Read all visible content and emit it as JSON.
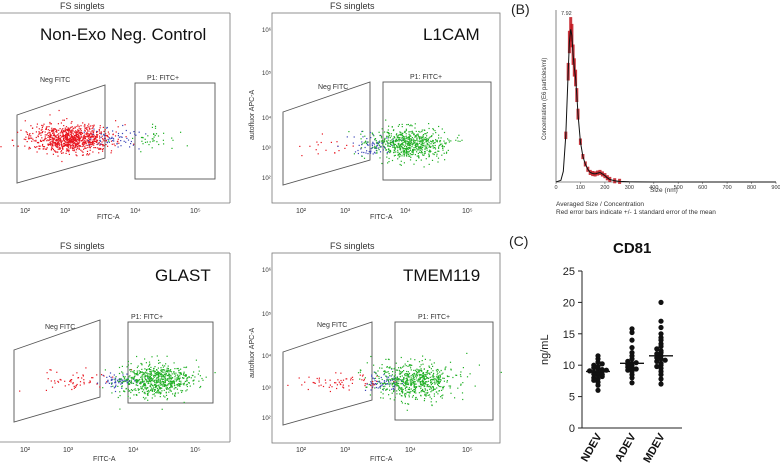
{
  "flow_panels": [
    {
      "top_title": "FS singlets",
      "sample_label": "Non-Exo Neg. Control",
      "gate_neg_label": "Neg FITC",
      "gate_pos_label": "P1: FITC+",
      "x_axis_label": "FITC-A",
      "y_axis_label": "",
      "x_ticks": [
        "10²",
        "10³",
        "10⁴",
        "10⁵"
      ],
      "y_ticks": []
    },
    {
      "top_title": "FS singlets",
      "sample_label": "L1CAM",
      "gate_neg_label": "Neg FITC",
      "gate_pos_label": "P1: FITC+",
      "x_axis_label": "FITC-A",
      "y_axis_label": "autofluor APC-A",
      "x_ticks": [
        "10²",
        "10³",
        "10⁴",
        "10⁵"
      ],
      "y_ticks": [
        "10⁶",
        "10⁵",
        "10⁴",
        "10³",
        "10²"
      ]
    },
    {
      "top_title": "FS singlets",
      "sample_label": "GLAST",
      "gate_neg_label": "Neg FITC",
      "gate_pos_label": "P1: FITC+",
      "x_axis_label": "FITC-A",
      "y_axis_label": "",
      "x_ticks": [
        "10²",
        "10³",
        "10⁴",
        "10⁵"
      ],
      "y_ticks": []
    },
    {
      "top_title": "FS singlets",
      "sample_label": "TMEM119",
      "gate_neg_label": "Neg FITC",
      "gate_pos_label": "P1: FITC+",
      "x_axis_label": "FITC-A",
      "y_axis_label": "autofluor APC-A",
      "x_ticks": [
        "10²",
        "10³",
        "10⁴",
        "10⁵"
      ],
      "y_ticks": [
        "10⁶",
        "10⁵",
        "10⁴",
        "10³",
        "10²"
      ]
    }
  ],
  "panel_b": {
    "letter": "(B)",
    "y_axis_label": "Concentration (E6 particles/ml)",
    "x_axis_label": "Size (nm)",
    "y_top_tick": "7.92",
    "x_ticks": [
      "0",
      "100",
      "200",
      "300",
      "400",
      "500",
      "600",
      "700",
      "800",
      "900"
    ],
    "caption_line1": "Averaged Size / Concentration",
    "caption_line2": "Red error bars indicate +/- 1 standard error of the mean"
  },
  "panel_c": {
    "letter": "(C)",
    "title": "CD81",
    "y_axis_label": "ng/mL",
    "categories": [
      "NDEV",
      "ADEV",
      "MDEV"
    ],
    "y_ticks": [
      "0",
      "5",
      "10",
      "15",
      "20",
      "25"
    ]
  },
  "chart_data": [
    {
      "type": "scatter",
      "title": "Non-Exo Neg. Control",
      "xlabel": "FITC-A",
      "x_scale": "log",
      "series": [
        {
          "name": "Neg FITC",
          "color": "#e8141e",
          "dominant": true
        },
        {
          "name": "P1: FITC+",
          "color": "#22b026"
        }
      ]
    },
    {
      "type": "scatter",
      "title": "L1CAM",
      "xlabel": "FITC-A",
      "ylabel": "autofluor APC-A",
      "x_scale": "log",
      "series": [
        {
          "name": "Neg FITC",
          "color": "#e8141e"
        },
        {
          "name": "P1: FITC+",
          "color": "#22b026",
          "dominant": true
        }
      ]
    },
    {
      "type": "scatter",
      "title": "GLAST",
      "xlabel": "FITC-A",
      "x_scale": "log",
      "series": [
        {
          "name": "Neg FITC",
          "color": "#e8141e"
        },
        {
          "name": "P1: FITC+",
          "color": "#22b026",
          "dominant": true
        }
      ]
    },
    {
      "type": "scatter",
      "title": "TMEM119",
      "xlabel": "FITC-A",
      "ylabel": "autofluor APC-A",
      "x_scale": "log",
      "series": [
        {
          "name": "Neg FITC",
          "color": "#e8141e"
        },
        {
          "name": "P1: FITC+",
          "color": "#22b026",
          "dominant": true
        }
      ]
    },
    {
      "type": "line",
      "xlabel": "Size (nm)",
      "ylabel": "Concentration (E6 particles/ml)",
      "xlim": [
        0,
        900
      ],
      "ylim": [
        0,
        7.92
      ],
      "x": [
        0,
        20,
        30,
        40,
        50,
        55,
        60,
        65,
        70,
        75,
        80,
        85,
        90,
        100,
        110,
        120,
        130,
        140,
        150,
        160,
        170,
        180,
        190,
        200,
        210,
        220,
        240,
        260,
        300,
        400,
        900
      ],
      "series": [
        {
          "name": "Averaged Size / Concentration",
          "color": "#111111",
          "values": [
            0,
            0.08,
            0.5,
            2.2,
            5.2,
            6.6,
            7.2,
            6.9,
            6.0,
            5.4,
            4.9,
            4.1,
            3.2,
            1.9,
            1.2,
            0.85,
            0.6,
            0.45,
            0.4,
            0.38,
            0.42,
            0.45,
            0.38,
            0.3,
            0.2,
            0.12,
            0.06,
            0.03,
            0.01,
            0.0,
            0.0
          ]
        }
      ],
      "error_bar_color": "#c0141c"
    },
    {
      "type": "scatter",
      "title": "CD81",
      "ylabel": "ng/mL",
      "categories": [
        "NDEV",
        "ADEV",
        "MDEV"
      ],
      "ylim": [
        0,
        25
      ],
      "series": [
        {
          "name": "NDEV",
          "values": [
            6.0,
            6.8,
            7.3,
            7.8,
            8.0,
            8.2,
            8.4,
            8.6,
            8.8,
            8.9,
            9.0,
            9.1,
            9.2,
            9.4,
            9.6,
            9.8,
            10.0,
            10.2,
            10.5,
            11.0,
            11.5,
            9.3,
            8.5,
            7.6
          ]
        },
        {
          "name": "ADEV",
          "values": [
            7.2,
            8.0,
            8.5,
            9.0,
            9.2,
            9.5,
            9.7,
            9.9,
            10.1,
            10.3,
            10.6,
            11.0,
            11.5,
            12.0,
            12.8,
            14.0,
            15.2,
            15.8,
            10.4,
            9.4
          ]
        },
        {
          "name": "MDEV",
          "values": [
            7.0,
            7.8,
            8.5,
            9.0,
            9.5,
            10.0,
            10.3,
            10.6,
            11.0,
            11.2,
            11.5,
            12.0,
            12.3,
            12.6,
            13.0,
            13.4,
            14.0,
            14.4,
            15.0,
            16.0,
            17.0,
            20.0,
            11.8,
            10.8,
            9.8
          ]
        }
      ],
      "summary_line": "median"
    }
  ]
}
